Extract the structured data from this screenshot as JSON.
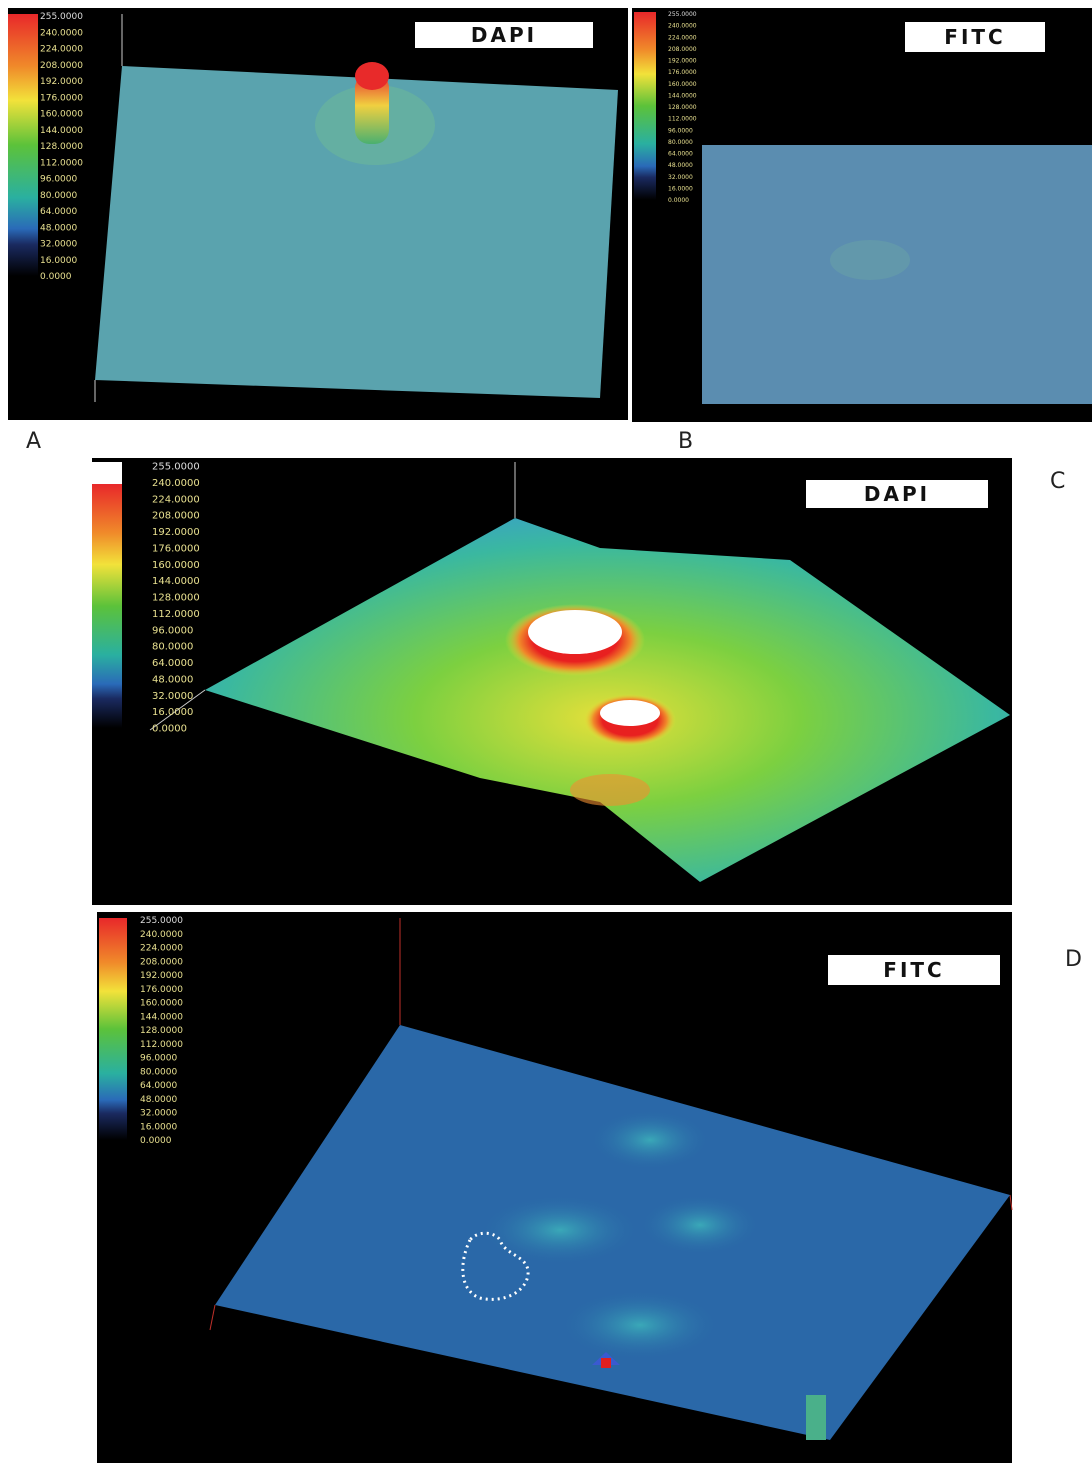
{
  "panels": [
    {
      "label": "A",
      "channel": "DAPI"
    },
    {
      "label": "B",
      "channel": "FITC"
    },
    {
      "label": "C",
      "channel": "DAPI"
    },
    {
      "label": "D",
      "channel": "FITC"
    }
  ],
  "colorbar_labels": [
    "255.0000",
    "240.0000",
    "224.0000",
    "208.0000",
    "192.0000",
    "176.0000",
    "160.0000",
    "144.0000",
    "128.0000",
    "112.0000",
    "96.0000",
    "80.0000",
    "64.0000",
    "48.0000",
    "32.0000",
    "16.0000",
    "0.0000"
  ]
}
